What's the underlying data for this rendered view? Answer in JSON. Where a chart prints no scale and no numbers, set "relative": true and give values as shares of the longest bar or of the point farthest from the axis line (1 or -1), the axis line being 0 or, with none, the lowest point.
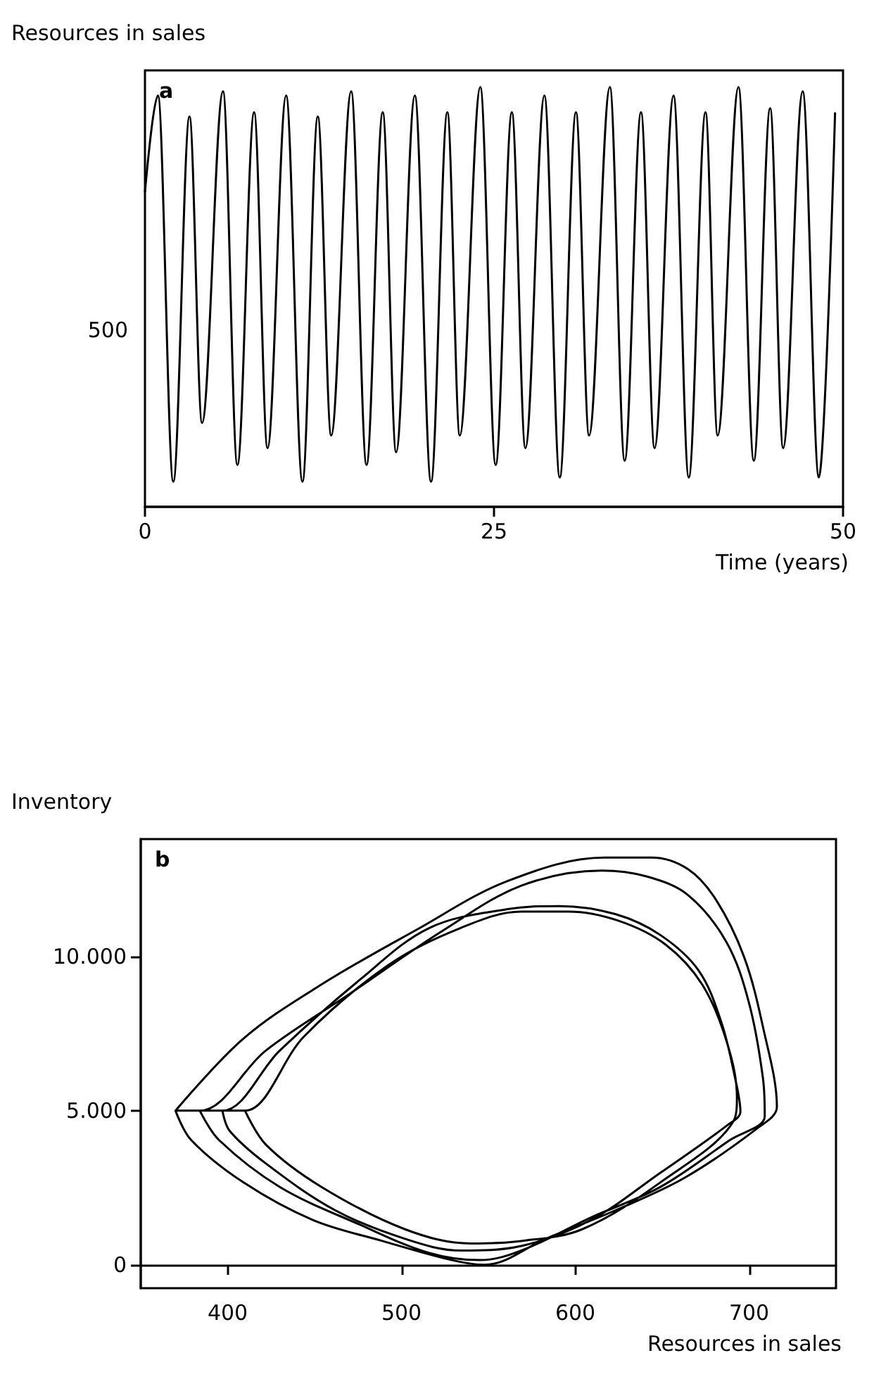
{
  "chart_data": [
    {
      "type": "line",
      "title": "a",
      "ylabel": "Resources in sales",
      "xlabel": "Time (years)",
      "relative": true,
      "color": "#000000",
      "annotations": [
        "500"
      ],
      "xlim": [
        0,
        50
      ],
      "xticks": [
        0,
        25,
        50
      ],
      "x": [
        0,
        0.93,
        2.03,
        3.19,
        4.09,
        5.59,
        6.62,
        7.82,
        8.78,
        10.11,
        11.28,
        12.38,
        13.34,
        14.77,
        15.87,
        17.03,
        17.99,
        19.33,
        20.49,
        21.66,
        22.55,
        24.02,
        25.12,
        26.28,
        27.25,
        28.61,
        29.71,
        30.87,
        31.81,
        33.3,
        34.36,
        35.53,
        36.5,
        37.86,
        38.95,
        40.15,
        41.02,
        42.51,
        43.61,
        44.78,
        45.71,
        47.11,
        48.27,
        49.43
      ],
      "values": [
        0.75,
        0.98,
        0.06,
        0.93,
        0.2,
        0.99,
        0.1,
        0.94,
        0.14,
        0.98,
        0.06,
        0.93,
        0.17,
        0.99,
        0.1,
        0.94,
        0.13,
        0.98,
        0.06,
        0.94,
        0.17,
        1,
        0.1,
        0.94,
        0.14,
        0.98,
        0.07,
        0.94,
        0.17,
        1,
        0.11,
        0.94,
        0.14,
        0.98,
        0.07,
        0.94,
        0.17,
        1,
        0.11,
        0.95,
        0.14,
        0.99,
        0.07,
        0.94
      ]
    },
    {
      "type": "line",
      "title": "b",
      "ylabel": "Inventory",
      "xlabel": "Resources in sales",
      "xlim": [
        350,
        750
      ],
      "xticks": [
        400,
        500,
        600,
        700
      ],
      "ylim": [
        -750,
        13800
      ],
      "yticks": [
        0,
        {
          "value": 5000,
          "label": "5.000"
        },
        {
          "value": 10000,
          "label": "10.000"
        }
      ],
      "series": [
        {
          "color": "#000000",
          "x": [
            370,
            409,
            454,
            508,
            561,
            617,
            644,
            665,
            681,
            697,
            708,
            716,
            705,
            663,
            623,
            583,
            548,
            529,
            489,
            449,
            409,
            379,
            370,
            384,
            422,
            470,
            524,
            569,
            615,
            641,
            665,
            687,
            700,
            708,
            709,
            689,
            649,
            609,
            569,
            545,
            516,
            476,
            430,
            395,
            384,
            397,
            430,
            476,
            516,
            561,
            591,
            623,
            649,
            671,
            684,
            692,
            695,
            687,
            649,
            609,
            569,
            534,
            502,
            462,
            422,
            401,
            397,
            410,
            444,
            492,
            534,
            569,
            596,
            625,
            652,
            673,
            687,
            693,
            691,
            649,
            604,
            569,
            540,
            502,
            454,
            422,
            410
          ],
          "values": [
            5000,
            7330,
            9090,
            10840,
            12440,
            13200,
            13200,
            12820,
            11830,
            10000,
            7710,
            5120,
            4440,
            2830,
            1770,
            850,
            10,
            160,
            780,
            1460,
            2680,
            4050,
            5000,
            5000,
            6950,
            8780,
            10840,
            12290,
            12780,
            12590,
            11980,
            10460,
            8480,
            6040,
            4820,
            4050,
            2530,
            1540,
            470,
            160,
            390,
            1310,
            2530,
            4050,
            5000,
            5000,
            6950,
            9240,
            10920,
            11530,
            11630,
            11370,
            10690,
            9540,
            7870,
            6040,
            4970,
            4510,
            2990,
            1460,
            620,
            470,
            850,
            1770,
            3290,
            4360,
            5000,
            5000,
            7410,
            9700,
            10920,
            11450,
            11450,
            11150,
            10380,
            9090,
            7260,
            5430,
            4660,
            2680,
            1160,
            780,
            700,
            1160,
            2530,
            3900,
            5000
          ]
        }
      ]
    }
  ]
}
